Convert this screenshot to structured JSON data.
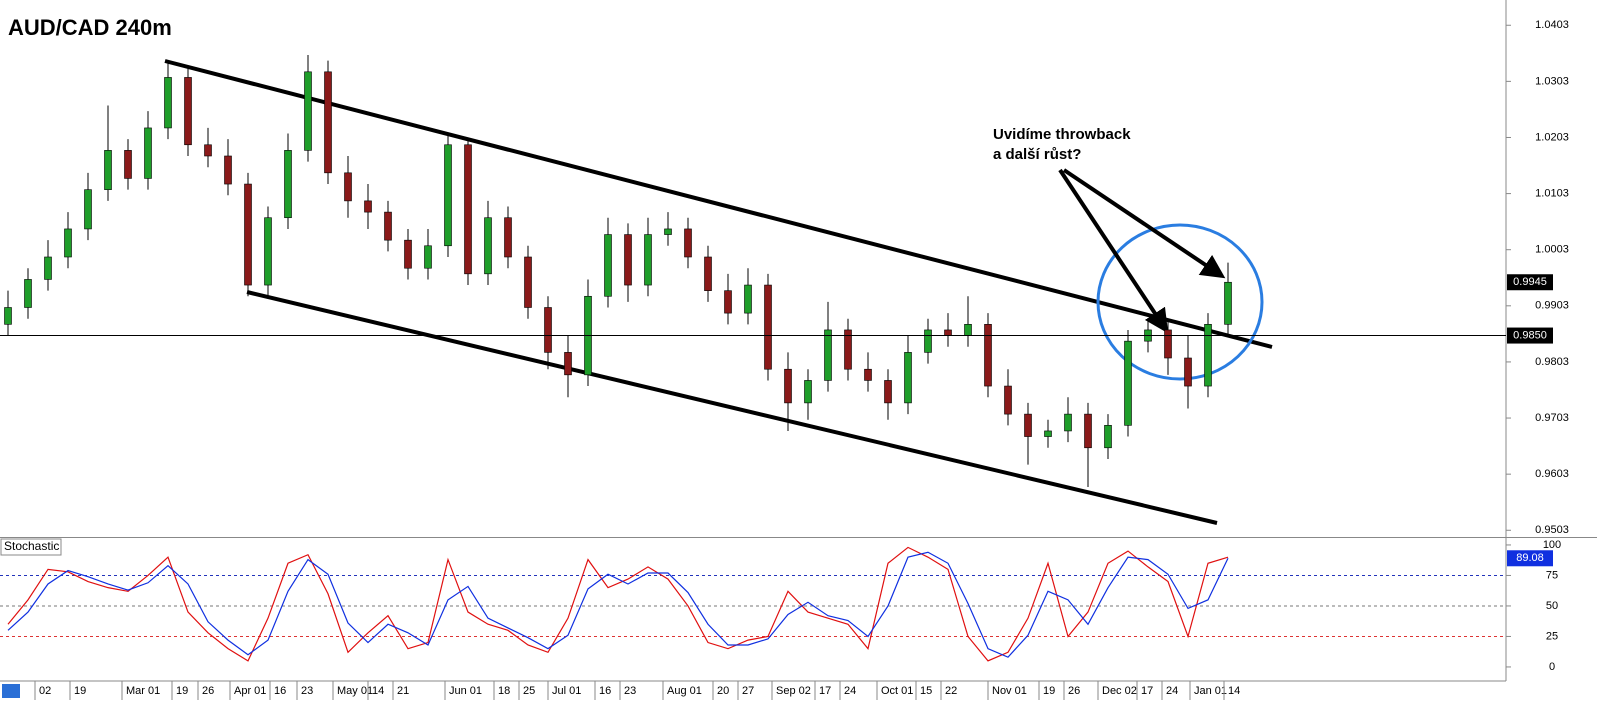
{
  "chart_data": [
    {
      "type": "candlestick",
      "title": "AUD/CAD 240m",
      "annotation_lines": [
        "Uvidíme throwback",
        "a další růst?"
      ],
      "up_color": "#1f9e2a",
      "down_color": "#8b1a1a",
      "xlim": [
        -0.4,
        74.85
      ],
      "ylim": [
        0.9491,
        1.0448
      ],
      "yticks": [
        1.0403,
        1.0303,
        1.0203,
        1.0103,
        1.0003,
        0.9903,
        0.9803,
        0.9703,
        0.9603,
        0.9503
      ],
      "hline": {
        "value": 0.985,
        "label": "0.9850"
      },
      "open": [
        0.987,
        0.99,
        0.995,
        0.999,
        1.004,
        1.011,
        1.018,
        1.013,
        1.022,
        1.031,
        1.019,
        1.017,
        1.012,
        0.994,
        1.006,
        1.018,
        1.032,
        1.014,
        1.009,
        1.007,
        1.002,
        0.997,
        1.001,
        1.019,
        0.996,
        1.006,
        0.999,
        0.99,
        0.982,
        0.978,
        0.992,
        1.003,
        0.994,
        1.003,
        1.004,
        0.999,
        0.993,
        0.989,
        0.994,
        0.979,
        0.973,
        0.977,
        0.986,
        0.979,
        0.977,
        0.973,
        0.982,
        0.986,
        0.985,
        0.987,
        0.976,
        0.971,
        0.967,
        0.968,
        0.971,
        0.965,
        0.969,
        0.984,
        0.986,
        0.981,
        0.976,
        0.987
      ],
      "high": [
        0.993,
        0.997,
        1.002,
        1.007,
        1.014,
        1.026,
        1.02,
        1.025,
        1.034,
        1.033,
        1.022,
        1.02,
        1.014,
        1.008,
        1.021,
        1.035,
        1.034,
        1.017,
        1.012,
        1.009,
        1.004,
        1.004,
        1.021,
        1.02,
        1.009,
        1.008,
        1.001,
        0.992,
        0.985,
        0.995,
        1.006,
        1.005,
        1.006,
        1.007,
        1.006,
        1.001,
        0.996,
        0.997,
        0.996,
        0.982,
        0.979,
        0.991,
        0.988,
        0.982,
        0.979,
        0.985,
        0.988,
        0.989,
        0.992,
        0.989,
        0.979,
        0.973,
        0.97,
        0.974,
        0.973,
        0.971,
        0.986,
        0.988,
        0.988,
        0.985,
        0.989,
        0.998
      ],
      "low": [
        0.985,
        0.988,
        0.993,
        0.997,
        1.002,
        1.009,
        1.011,
        1.011,
        1.02,
        1.017,
        1.015,
        1.01,
        0.992,
        0.992,
        1.004,
        1.016,
        1.012,
        1.006,
        1.004,
        1.0,
        0.995,
        0.995,
        0.999,
        0.994,
        0.994,
        0.997,
        0.988,
        0.979,
        0.974,
        0.976,
        0.99,
        0.991,
        0.992,
        1.001,
        0.997,
        0.991,
        0.987,
        0.987,
        0.977,
        0.968,
        0.97,
        0.975,
        0.977,
        0.975,
        0.97,
        0.971,
        0.98,
        0.983,
        0.983,
        0.974,
        0.969,
        0.962,
        0.965,
        0.966,
        0.958,
        0.963,
        0.967,
        0.982,
        0.978,
        0.972,
        0.974,
        0.985
      ],
      "close": [
        0.99,
        0.995,
        0.999,
        1.004,
        1.011,
        1.018,
        1.013,
        1.022,
        1.031,
        1.019,
        1.017,
        1.012,
        0.994,
        1.006,
        1.018,
        1.032,
        1.014,
        1.009,
        1.007,
        1.002,
        0.997,
        1.001,
        1.019,
        0.996,
        1.006,
        0.999,
        0.99,
        0.982,
        0.978,
        0.992,
        1.003,
        0.994,
        1.003,
        1.004,
        0.999,
        0.993,
        0.989,
        0.994,
        0.979,
        0.973,
        0.977,
        0.986,
        0.979,
        0.977,
        0.973,
        0.982,
        0.986,
        0.985,
        0.987,
        0.976,
        0.971,
        0.967,
        0.968,
        0.971,
        0.965,
        0.969,
        0.984,
        0.986,
        0.981,
        0.976,
        0.987,
        0.9945
      ]
    },
    {
      "type": "line",
      "title": "Stochastic",
      "xlim": [
        -0.4,
        74.85
      ],
      "ylim": [
        -10.7,
        105.7
      ],
      "yticks": [
        0,
        25,
        50,
        75,
        100
      ],
      "levels": [
        25,
        50,
        75
      ],
      "level_colors": [
        "#d33",
        "#777",
        "#2233bb"
      ],
      "xticks": [
        {
          "value": 1.35,
          "label": "02"
        },
        {
          "value": 3.1,
          "label": "19"
        },
        {
          "value": 5.7,
          "label": "Mar 01"
        },
        {
          "value": 8.2,
          "label": "19"
        },
        {
          "value": 9.5,
          "label": "26"
        },
        {
          "value": 11.1,
          "label": "Apr 01"
        },
        {
          "value": 13.1,
          "label": "16"
        },
        {
          "value": 14.45,
          "label": "23"
        },
        {
          "value": 16.25,
          "label": "May 01"
        },
        {
          "value": 18,
          "label": "14"
        },
        {
          "value": 19.25,
          "label": "21"
        },
        {
          "value": 21.85,
          "label": "Jun 01"
        },
        {
          "value": 24.3,
          "label": "18"
        },
        {
          "value": 25.55,
          "label": "25"
        },
        {
          "value": 27,
          "label": "Jul 01"
        },
        {
          "value": 29.35,
          "label": "16"
        },
        {
          "value": 30.6,
          "label": "23"
        },
        {
          "value": 32.75,
          "label": "Aug 01"
        },
        {
          "value": 35.25,
          "label": "20"
        },
        {
          "value": 36.5,
          "label": "27"
        },
        {
          "value": 38.2,
          "label": "Sep 02"
        },
        {
          "value": 40.35,
          "label": "17"
        },
        {
          "value": 41.6,
          "label": "24"
        },
        {
          "value": 43.45,
          "label": "Oct 01"
        },
        {
          "value": 45.4,
          "label": "15"
        },
        {
          "value": 46.65,
          "label": "22"
        },
        {
          "value": 49,
          "label": "Nov 01"
        },
        {
          "value": 51.55,
          "label": "19"
        },
        {
          "value": 52.8,
          "label": "26"
        },
        {
          "value": 54.5,
          "label": "Dec 02"
        },
        {
          "value": 56.45,
          "label": "17"
        },
        {
          "value": 57.7,
          "label": "24"
        },
        {
          "value": 59.1,
          "label": "Jan 01"
        },
        {
          "value": 60.8,
          "label": "14"
        }
      ],
      "series": [
        {
          "color": "#e01010",
          "values": [
            35,
            55,
            80,
            78,
            70,
            65,
            62,
            75,
            90,
            45,
            28,
            15,
            5,
            40,
            85,
            92,
            60,
            12,
            28,
            42,
            15,
            20,
            88,
            45,
            35,
            30,
            18,
            12,
            40,
            88,
            65,
            72,
            82,
            72,
            50,
            20,
            15,
            22,
            25,
            62,
            45,
            40,
            35,
            15,
            85,
            98,
            90,
            80,
            25,
            5,
            12,
            40,
            85,
            25,
            45,
            85,
            95,
            82,
            70,
            25,
            85,
            90
          ]
        },
        {
          "color": "#1030e0",
          "values": [
            30,
            45,
            68,
            79,
            74,
            68,
            63,
            69,
            83,
            68,
            37,
            22,
            10,
            22,
            62,
            88,
            76,
            36,
            20,
            35,
            28,
            18,
            55,
            66,
            40,
            32,
            24,
            15,
            26,
            64,
            76,
            68,
            77,
            77,
            61,
            35,
            18,
            18,
            23,
            43,
            53,
            42,
            38,
            25,
            50,
            90,
            94,
            85,
            52,
            15,
            8,
            26,
            62,
            55,
            35,
            65,
            90,
            88,
            76,
            48,
            55,
            89.08
          ]
        }
      ]
    }
  ]
}
